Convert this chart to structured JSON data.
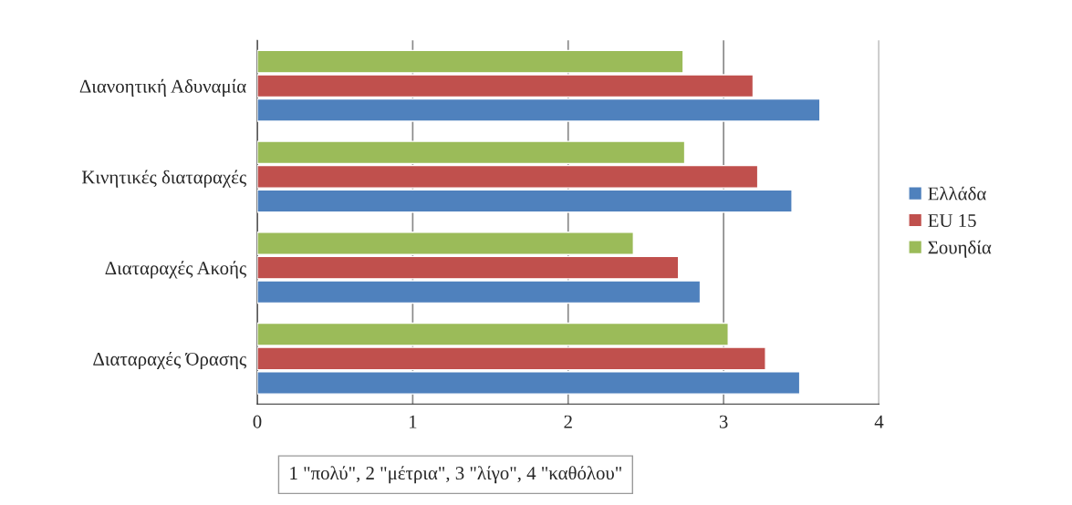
{
  "chart_data": {
    "type": "bar",
    "orientation": "horizontal",
    "categories": [
      "Διανοητική Αδυναμία",
      "Κινητικές διαταραχές",
      "Διαταραχές Ακοής",
      "Διαταραχές Όρασης"
    ],
    "series": [
      {
        "name": "Σουηδία",
        "color": "#9bbb59",
        "values": [
          2.74,
          2.75,
          2.42,
          3.03
        ]
      },
      {
        "name": "EU 15",
        "color": "#c0504d",
        "values": [
          3.19,
          3.22,
          2.71,
          3.27
        ]
      },
      {
        "name": "Ελλάδα",
        "color": "#4f81bd",
        "values": [
          3.62,
          3.44,
          2.85,
          3.49
        ]
      }
    ],
    "xlim": [
      0,
      4
    ],
    "xticks": [
      0,
      1,
      2,
      3,
      4
    ],
    "grid": "x",
    "legend": "right",
    "annotations": [
      "1 \"πολύ\", 2 \"μέτρια\", 3 \"λίγο\", 4 \"καθόλου\""
    ]
  }
}
